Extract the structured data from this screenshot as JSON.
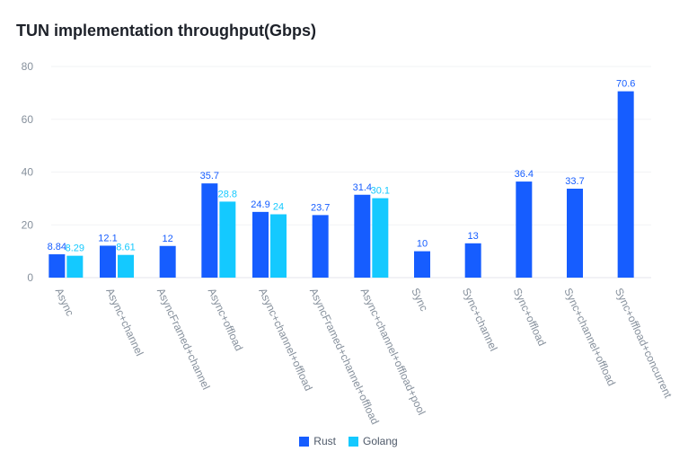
{
  "title": "TUN implementation throughput(Gbps)",
  "chart_data": {
    "type": "bar",
    "title": "TUN implementation throughput(Gbps)",
    "xlabel": "",
    "ylabel": "",
    "ylim": [
      0,
      80
    ],
    "yticks": [
      0,
      20,
      40,
      60,
      80
    ],
    "grid": true,
    "legend_position": "bottom",
    "categories": [
      "Async",
      "Async+channel",
      "AsyncFramed+channel",
      "Async+offload",
      "Async+channel+offload",
      "AsyncFramed+channel+offload",
      "Async+channel+offload+pool",
      "Sync",
      "Sync+channel",
      "Sync+offload",
      "Sync+channel+offload",
      "Sync+offload+concurrent"
    ],
    "series": [
      {
        "name": "Rust",
        "color": "#165dff",
        "values": [
          8.84,
          12.1,
          12,
          35.7,
          24.9,
          23.7,
          31.4,
          10,
          13,
          36.4,
          33.7,
          70.6
        ]
      },
      {
        "name": "Golang",
        "color": "#14c9ff",
        "values": [
          8.29,
          8.61,
          null,
          28.8,
          24,
          null,
          30.1,
          null,
          null,
          null,
          null,
          null
        ]
      }
    ]
  }
}
